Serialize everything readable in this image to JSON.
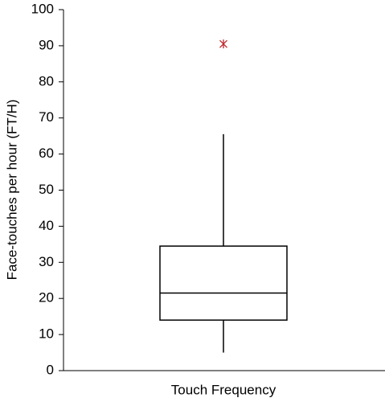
{
  "chart_data": {
    "type": "box",
    "ylabel": "Face-touches per hour (FT/H)",
    "categories": [
      "Touch Frequency"
    ],
    "boxes": [
      {
        "whisker_low": 5,
        "q1": 14,
        "median": 21.5,
        "q3": 34.5,
        "whisker_high": 65.5,
        "outliers": [
          90.5
        ]
      }
    ],
    "color": "#000000",
    "outlier_color": "#c0272d",
    "ylim": [
      0,
      100
    ],
    "yticks": [
      0,
      10,
      20,
      30,
      40,
      50,
      60,
      70,
      80,
      90,
      100
    ],
    "grid": false
  }
}
